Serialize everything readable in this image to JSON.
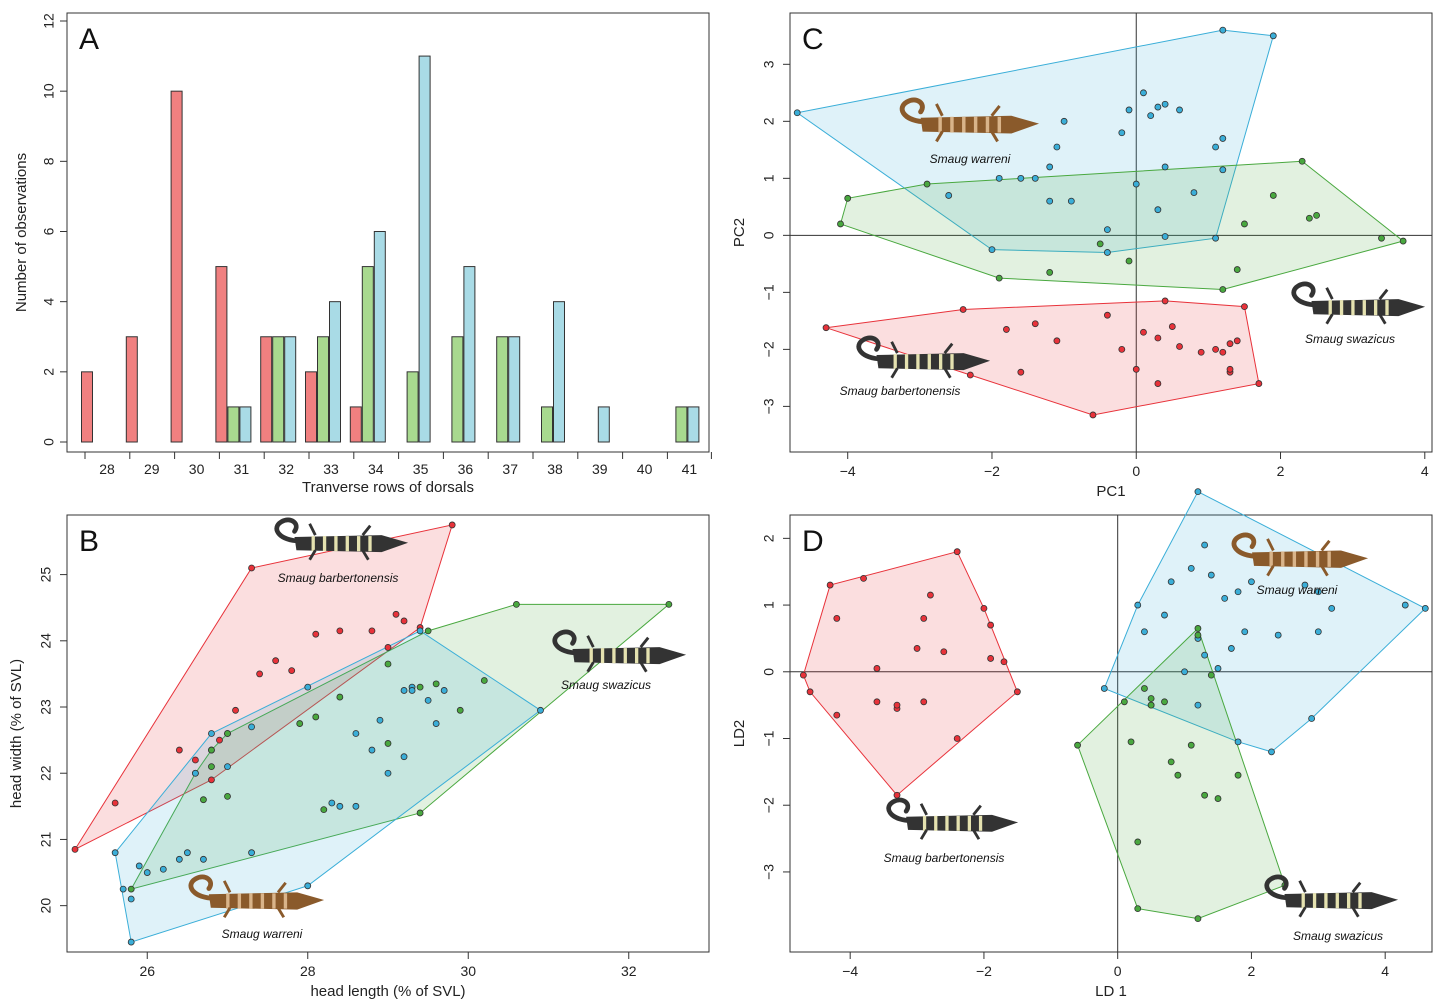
{
  "colors": {
    "barbertonensis": "#e8323a",
    "swazicus": "#49a83f",
    "warreni": "#3aaed8",
    "bar_red": "#f08080",
    "bar_green": "#a8d98f",
    "bar_blue": "#a9dbe6"
  },
  "chart_data": [
    {
      "panel": "A",
      "type": "bar",
      "xlabel": "Tranverse rows of dorsals",
      "ylabel": "Number of observations",
      "ylim": [
        0,
        12
      ],
      "yticks": [
        0,
        2,
        4,
        6,
        8,
        10,
        12
      ],
      "categories": [
        "28",
        "29",
        "30",
        "31",
        "32",
        "33",
        "34",
        "35",
        "36",
        "37",
        "38",
        "39",
        "40",
        "41"
      ],
      "series": [
        {
          "color": "#f08080",
          "values": [
            2,
            3,
            10,
            5,
            3,
            2,
            1,
            0,
            0,
            0,
            0,
            0,
            0,
            0
          ]
        },
        {
          "color": "#a8d98f",
          "values": [
            0,
            0,
            0,
            1,
            3,
            3,
            5,
            2,
            3,
            3,
            1,
            0,
            0,
            1
          ]
        },
        {
          "color": "#a9dbe6",
          "values": [
            0,
            0,
            0,
            1,
            3,
            4,
            6,
            11,
            5,
            3,
            4,
            1,
            0,
            1
          ]
        }
      ]
    },
    {
      "panel": "B",
      "type": "scatter",
      "xlabel": "head length (% of SVL)",
      "ylabel": "head width (% of SVL)",
      "xlim": [
        25.0,
        33.0
      ],
      "ylim": [
        19.3,
        25.9
      ],
      "xticks": [
        26,
        28,
        30,
        32
      ],
      "yticks": [
        20,
        21,
        22,
        23,
        24,
        25
      ],
      "series": [
        {
          "species": "Smaug barbertonensis",
          "color": "#e8323a",
          "x": [
            25.1,
            27.3,
            29.8,
            25.6,
            26.4,
            26.6,
            26.8,
            26.9,
            27.0,
            27.1,
            27.4,
            27.6,
            27.8,
            28.1,
            28.4,
            28.8,
            29.1,
            29.2,
            29.4,
            29.0,
            26.8
          ],
          "y": [
            20.85,
            25.1,
            25.75,
            21.55,
            22.35,
            22.2,
            22.35,
            22.5,
            22.6,
            22.95,
            23.5,
            23.7,
            23.55,
            24.1,
            24.15,
            24.15,
            24.4,
            24.3,
            24.2,
            23.9,
            21.9
          ]
        },
        {
          "species": "Smaug swazicus",
          "color": "#49a83f",
          "x": [
            25.8,
            26.7,
            26.8,
            26.6,
            26.8,
            27.0,
            27.0,
            27.9,
            28.1,
            28.2,
            28.4,
            29.0,
            29.4,
            29.4,
            29.6,
            29.9,
            30.2,
            30.6,
            32.5,
            29.5,
            29.0
          ],
          "y": [
            20.25,
            21.6,
            22.35,
            22.0,
            22.1,
            21.65,
            22.6,
            22.75,
            22.85,
            21.45,
            23.15,
            22.45,
            21.4,
            23.3,
            23.35,
            22.95,
            23.4,
            24.55,
            24.55,
            24.15,
            23.65
          ]
        },
        {
          "species": "Smaug warreni",
          "color": "#3aaed8",
          "x": [
            25.6,
            25.7,
            25.8,
            25.8,
            25.9,
            26.0,
            26.2,
            26.4,
            26.5,
            26.6,
            26.7,
            26.8,
            27.0,
            27.3,
            27.3,
            28.0,
            28.0,
            28.3,
            28.6,
            28.8,
            29.0,
            29.2,
            29.3,
            29.4,
            29.5,
            29.6,
            29.7,
            30.9,
            29.3,
            28.9,
            28.6,
            28.4,
            29.2
          ],
          "y": [
            20.8,
            20.25,
            20.1,
            19.45,
            20.6,
            20.5,
            20.55,
            20.7,
            20.8,
            22.0,
            20.7,
            22.6,
            22.1,
            22.7,
            20.8,
            23.3,
            20.3,
            21.55,
            22.6,
            22.35,
            22.0,
            23.25,
            23.3,
            24.15,
            23.1,
            22.75,
            23.25,
            22.95,
            23.25,
            22.8,
            21.5,
            21.5,
            22.25
          ]
        }
      ],
      "annotations": [
        "Smaug barbertonensis",
        "Smaug swazicus",
        "Smaug warreni"
      ]
    },
    {
      "panel": "C",
      "type": "scatter",
      "xlabel": "PC1",
      "ylabel": "PC2",
      "xlim": [
        -4.8,
        4.1
      ],
      "ylim": [
        -3.8,
        3.9
      ],
      "xticks": [
        -4,
        -2,
        0,
        2,
        4
      ],
      "yticks": [
        -3,
        -2,
        -1,
        0,
        1,
        2,
        3
      ],
      "series": [
        {
          "species": "Smaug warreni",
          "color": "#3aaed8",
          "x": [
            -4.7,
            -2.6,
            -2.0,
            -1.9,
            -1.6,
            -1.4,
            -1.2,
            -1.1,
            -1.0,
            -1.2,
            -0.9,
            -0.4,
            -0.4,
            -0.2,
            -0.1,
            0.1,
            0.2,
            0.3,
            0.3,
            0.4,
            0.4,
            0.6,
            0.8,
            1.1,
            1.1,
            1.2,
            1.2,
            1.2,
            1.9,
            0.4,
            0.0
          ],
          "y": [
            2.15,
            0.7,
            -0.25,
            1.0,
            1.0,
            1.0,
            0.6,
            1.55,
            2.0,
            1.2,
            0.6,
            -0.3,
            0.1,
            1.8,
            2.2,
            2.5,
            2.1,
            2.25,
            0.45,
            -0.02,
            2.3,
            2.2,
            0.75,
            -0.05,
            1.55,
            1.15,
            1.7,
            3.6,
            3.5,
            1.2,
            0.9
          ]
        },
        {
          "species": "Smaug swazicus",
          "color": "#49a83f",
          "x": [
            -4.1,
            -4.0,
            -2.9,
            -1.9,
            -1.2,
            -0.1,
            1.2,
            1.4,
            1.5,
            1.9,
            2.3,
            2.4,
            2.5,
            3.4,
            3.7,
            -0.5
          ],
          "y": [
            0.2,
            0.65,
            0.9,
            -0.75,
            -0.65,
            -0.45,
            -0.95,
            -0.6,
            0.2,
            0.7,
            1.3,
            0.3,
            0.35,
            -0.05,
            -0.1,
            -0.15
          ]
        },
        {
          "species": "Smaug barbertonensis",
          "color": "#e8323a",
          "x": [
            -4.3,
            -2.4,
            -2.3,
            -1.8,
            -1.6,
            -1.4,
            -1.1,
            -0.6,
            -0.4,
            -0.2,
            0.0,
            0.1,
            0.3,
            0.3,
            0.4,
            0.5,
            0.6,
            0.9,
            1.1,
            1.2,
            1.3,
            1.3,
            1.3,
            1.4,
            1.5,
            1.7
          ],
          "y": [
            -1.62,
            -1.3,
            -2.45,
            -1.65,
            -2.4,
            -1.55,
            -1.85,
            -3.15,
            -1.4,
            -2.0,
            -2.35,
            -1.7,
            -1.8,
            -2.6,
            -1.15,
            -1.6,
            -1.95,
            -2.05,
            -2.0,
            -2.05,
            -1.9,
            -2.4,
            -2.35,
            -1.85,
            -1.25,
            -2.6
          ]
        }
      ],
      "annotations": [
        "Smaug warreni",
        "Smaug swazicus",
        "Smaug barbertonensis"
      ]
    },
    {
      "panel": "D",
      "type": "scatter",
      "xlabel": "LD 1",
      "ylabel": "LD2",
      "xlim": [
        -4.9,
        4.7
      ],
      "ylim": [
        -4.2,
        2.35
      ],
      "xticks": [
        -4,
        -2,
        0,
        2,
        4
      ],
      "yticks": [
        -3,
        -2,
        -1,
        0,
        1,
        2
      ],
      "series": [
        {
          "species": "Smaug barbertonensis",
          "color": "#e8323a",
          "x": [
            -4.7,
            -4.6,
            -4.2,
            -4.2,
            -4.3,
            -3.8,
            -3.6,
            -3.6,
            -3.3,
            -3.0,
            -2.9,
            -2.8,
            -2.6,
            -2.4,
            -2.4,
            -2.0,
            -1.9,
            -1.7,
            -1.5,
            -1.9,
            -3.3,
            -3.3,
            -2.9
          ],
          "y": [
            -0.05,
            -0.3,
            -0.65,
            0.8,
            1.3,
            1.4,
            0.05,
            -0.45,
            -0.55,
            0.35,
            0.8,
            1.15,
            0.3,
            -1.0,
            1.8,
            0.95,
            0.7,
            0.15,
            -0.3,
            0.2,
            -1.85,
            -0.5,
            -0.45
          ]
        },
        {
          "species": "Smaug warreni",
          "color": "#3aaed8",
          "x": [
            -0.2,
            0.3,
            0.4,
            0.5,
            0.7,
            0.8,
            1.0,
            1.1,
            1.2,
            1.2,
            1.3,
            1.3,
            1.4,
            1.5,
            1.6,
            1.7,
            1.8,
            1.8,
            1.9,
            2.0,
            2.1,
            2.3,
            2.4,
            2.9,
            3.0,
            3.0,
            3.2,
            4.3,
            4.6,
            1.2,
            2.8
          ],
          "y": [
            -0.25,
            1.0,
            0.6,
            -0.5,
            0.85,
            1.35,
            0.0,
            1.55,
            2.7,
            0.5,
            0.25,
            1.9,
            1.45,
            0.05,
            1.1,
            0.35,
            1.2,
            -1.05,
            0.6,
            1.35,
            1.65,
            -1.2,
            0.55,
            -0.7,
            0.6,
            1.2,
            0.95,
            1.0,
            0.95,
            -0.5,
            1.3
          ]
        },
        {
          "species": "Smaug swazicus",
          "color": "#49a83f",
          "x": [
            -0.6,
            0.1,
            0.2,
            0.3,
            0.3,
            0.4,
            0.5,
            0.5,
            0.7,
            0.8,
            0.9,
            1.1,
            1.2,
            1.2,
            1.2,
            1.3,
            1.4,
            1.5,
            1.8,
            2.5
          ],
          "y": [
            -1.1,
            -0.45,
            -1.05,
            -2.55,
            -3.55,
            -0.25,
            -0.4,
            -0.5,
            -0.45,
            -1.35,
            -1.55,
            -1.1,
            0.55,
            0.65,
            -3.7,
            -1.85,
            -0.05,
            -1.9,
            -1.55,
            -3.2
          ]
        }
      ],
      "annotations": [
        "Smaug warreni",
        "Smaug barbertonensis",
        "Smaug swazicus"
      ]
    }
  ]
}
